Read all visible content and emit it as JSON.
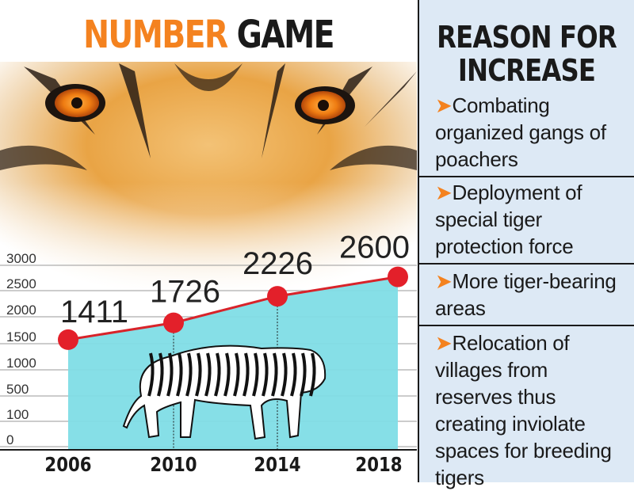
{
  "title": {
    "part1": "NUMBER",
    "part2": "GAME"
  },
  "chart_data": {
    "type": "line",
    "title": "NUMBER GAME",
    "categories": [
      "2006",
      "2010",
      "2014",
      "2018"
    ],
    "values": [
      1411,
      1726,
      2226,
      2600
    ],
    "value_labels": [
      "1411",
      "1726",
      "2226",
      "2600"
    ],
    "y_ticks": [
      0,
      100,
      500,
      1000,
      1500,
      2000,
      2500,
      3000
    ],
    "xlabel": "",
    "ylabel": "",
    "grid": true,
    "legend": "none",
    "colors": {
      "line": "#d8232a",
      "marker": "#e3202a",
      "fill": "#7fdde6",
      "title_accent": "#f4821f"
    }
  },
  "reasons": {
    "title": "REASON FOR INCREASE",
    "items": [
      {
        "arrow": "➤",
        "text": "Combating organized gangs of poachers"
      },
      {
        "arrow": "➤",
        "text": "Deployment of special tiger protection force"
      },
      {
        "arrow": "➤",
        "text": "More tiger-bearing areas"
      },
      {
        "arrow": "➤",
        "text": "Relocation of villages from reserves thus creating inviolate spaces for breeding tigers"
      }
    ]
  }
}
